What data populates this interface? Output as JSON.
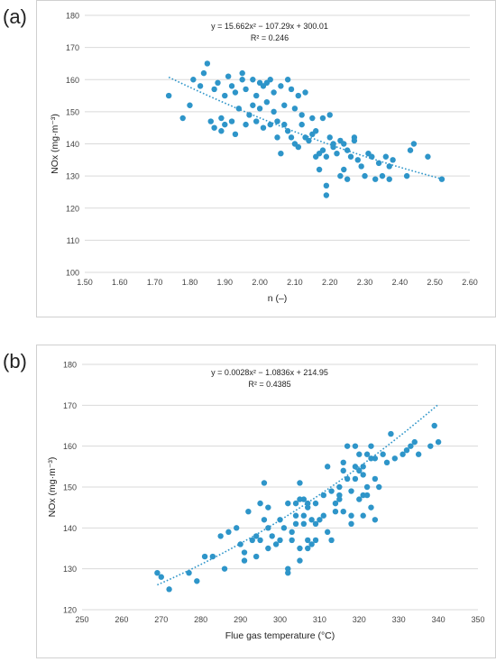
{
  "panels": [
    {
      "label": "(a)"
    },
    {
      "label": "(b)"
    }
  ],
  "chart_data": [
    {
      "type": "scatter",
      "title": "",
      "xlabel": "n (–)",
      "ylabel": "NOx (mg·m⁻³)",
      "xlim": [
        1.5,
        2.6
      ],
      "ylim": [
        100,
        180
      ],
      "x_ticks": [
        "1.50",
        "1.60",
        "1.70",
        "1.80",
        "1.90",
        "2.00",
        "2.10",
        "2.20",
        "2.30",
        "2.40",
        "2.50",
        "2.60"
      ],
      "y_ticks": [
        "100",
        "110",
        "120",
        "130",
        "140",
        "150",
        "160",
        "170",
        "180"
      ],
      "equation": "y = 15.662x² − 107.29x + 300.01",
      "r2": "R² = 0.246",
      "trendline": {
        "type": "polynomial",
        "a": 15.662,
        "b": -107.29,
        "c": 300.01,
        "x_range": [
          1.74,
          2.52
        ]
      },
      "color": "#2e95c9",
      "grid": "horizontal",
      "points": [
        [
          1.74,
          155
        ],
        [
          1.78,
          148
        ],
        [
          1.8,
          152
        ],
        [
          1.81,
          160
        ],
        [
          1.83,
          158
        ],
        [
          1.84,
          162
        ],
        [
          1.85,
          165
        ],
        [
          1.86,
          147
        ],
        [
          1.87,
          145
        ],
        [
          1.87,
          157
        ],
        [
          1.88,
          159
        ],
        [
          1.89,
          144
        ],
        [
          1.89,
          148
        ],
        [
          1.9,
          155
        ],
        [
          1.9,
          146
        ],
        [
          1.91,
          161
        ],
        [
          1.92,
          158
        ],
        [
          1.92,
          147
        ],
        [
          1.93,
          156
        ],
        [
          1.93,
          143
        ],
        [
          1.94,
          151
        ],
        [
          1.95,
          162
        ],
        [
          1.95,
          160
        ],
        [
          1.96,
          157
        ],
        [
          1.96,
          146
        ],
        [
          1.97,
          149
        ],
        [
          1.98,
          160
        ],
        [
          1.98,
          152
        ],
        [
          1.99,
          147
        ],
        [
          1.99,
          155
        ],
        [
          2.0,
          159
        ],
        [
          2.0,
          151
        ],
        [
          2.01,
          145
        ],
        [
          2.01,
          158
        ],
        [
          2.02,
          159
        ],
        [
          2.02,
          153
        ],
        [
          2.03,
          146
        ],
        [
          2.03,
          160
        ],
        [
          2.04,
          156
        ],
        [
          2.04,
          150
        ],
        [
          2.05,
          142
        ],
        [
          2.05,
          147
        ],
        [
          2.06,
          137
        ],
        [
          2.06,
          158
        ],
        [
          2.07,
          152
        ],
        [
          2.07,
          146
        ],
        [
          2.08,
          160
        ],
        [
          2.08,
          144
        ],
        [
          2.09,
          142
        ],
        [
          2.09,
          157
        ],
        [
          2.1,
          151
        ],
        [
          2.1,
          140
        ],
        [
          2.11,
          155
        ],
        [
          2.11,
          139
        ],
        [
          2.12,
          149
        ],
        [
          2.12,
          146
        ],
        [
          2.13,
          142
        ],
        [
          2.13,
          156
        ],
        [
          2.14,
          141
        ],
        [
          2.15,
          143
        ],
        [
          2.15,
          148
        ],
        [
          2.16,
          144
        ],
        [
          2.16,
          136
        ],
        [
          2.17,
          137
        ],
        [
          2.17,
          132
        ],
        [
          2.18,
          148
        ],
        [
          2.18,
          138
        ],
        [
          2.19,
          136
        ],
        [
          2.19,
          127
        ],
        [
          2.19,
          124
        ],
        [
          2.2,
          149
        ],
        [
          2.2,
          142
        ],
        [
          2.21,
          140
        ],
        [
          2.21,
          139
        ],
        [
          2.22,
          137
        ],
        [
          2.23,
          141
        ],
        [
          2.23,
          130
        ],
        [
          2.24,
          132
        ],
        [
          2.24,
          140
        ],
        [
          2.25,
          138
        ],
        [
          2.25,
          129
        ],
        [
          2.26,
          136
        ],
        [
          2.27,
          141
        ],
        [
          2.27,
          142
        ],
        [
          2.28,
          135
        ],
        [
          2.29,
          133
        ],
        [
          2.3,
          130
        ],
        [
          2.31,
          137
        ],
        [
          2.32,
          136
        ],
        [
          2.33,
          129
        ],
        [
          2.34,
          134
        ],
        [
          2.35,
          130
        ],
        [
          2.36,
          136
        ],
        [
          2.37,
          133
        ],
        [
          2.37,
          129
        ],
        [
          2.38,
          135
        ],
        [
          2.42,
          130
        ],
        [
          2.43,
          138
        ],
        [
          2.44,
          140
        ],
        [
          2.48,
          136
        ],
        [
          2.52,
          129
        ]
      ]
    },
    {
      "type": "scatter",
      "title": "",
      "xlabel": "Flue gas temperature (°C)",
      "ylabel": "NOx (mg·m⁻³)",
      "xlim": [
        250,
        350
      ],
      "ylim": [
        120,
        180
      ],
      "x_ticks": [
        "250",
        "260",
        "270",
        "280",
        "290",
        "300",
        "310",
        "320",
        "330",
        "340",
        "350"
      ],
      "y_ticks": [
        "120",
        "130",
        "140",
        "150",
        "160",
        "170",
        "180"
      ],
      "equation": "y = 0.0028x² − 1.0836x + 214.95",
      "r2": "R² = 0.4385",
      "trendline": {
        "type": "polynomial",
        "a": 0.0028,
        "b": -1.0836,
        "c": 214.95,
        "x_range": [
          269,
          340
        ]
      },
      "color": "#2e95c9",
      "grid": "horizontal",
      "points": [
        [
          269,
          129
        ],
        [
          270,
          128
        ],
        [
          272,
          125
        ],
        [
          277,
          129
        ],
        [
          279,
          127
        ],
        [
          281,
          133
        ],
        [
          283,
          133
        ],
        [
          285,
          138
        ],
        [
          286,
          130
        ],
        [
          287,
          139
        ],
        [
          289,
          140
        ],
        [
          290,
          136
        ],
        [
          291,
          134
        ],
        [
          291,
          132
        ],
        [
          292,
          144
        ],
        [
          293,
          137
        ],
        [
          294,
          138
        ],
        [
          294,
          133
        ],
        [
          295,
          146
        ],
        [
          295,
          137
        ],
        [
          296,
          151
        ],
        [
          296,
          142
        ],
        [
          297,
          145
        ],
        [
          297,
          140
        ],
        [
          297,
          135
        ],
        [
          298,
          138
        ],
        [
          299,
          136
        ],
        [
          300,
          137
        ],
        [
          300,
          142
        ],
        [
          301,
          140
        ],
        [
          302,
          146
        ],
        [
          302,
          130
        ],
        [
          302,
          129
        ],
        [
          303,
          139
        ],
        [
          303,
          137
        ],
        [
          304,
          143
        ],
        [
          304,
          146
        ],
        [
          304,
          141
        ],
        [
          305,
          151
        ],
        [
          305,
          147
        ],
        [
          305,
          135
        ],
        [
          305,
          132
        ],
        [
          306,
          147
        ],
        [
          306,
          143
        ],
        [
          306,
          141
        ],
        [
          307,
          146
        ],
        [
          307,
          145
        ],
        [
          307,
          137
        ],
        [
          307,
          135
        ],
        [
          308,
          142
        ],
        [
          308,
          136
        ],
        [
          309,
          141
        ],
        [
          309,
          146
        ],
        [
          309,
          137
        ],
        [
          310,
          142
        ],
        [
          311,
          143
        ],
        [
          311,
          148
        ],
        [
          312,
          155
        ],
        [
          312,
          139
        ],
        [
          313,
          137
        ],
        [
          313,
          149
        ],
        [
          314,
          144
        ],
        [
          314,
          146
        ],
        [
          315,
          147
        ],
        [
          315,
          148
        ],
        [
          315,
          150
        ],
        [
          316,
          144
        ],
        [
          316,
          156
        ],
        [
          316,
          154
        ],
        [
          317,
          152
        ],
        [
          317,
          160
        ],
        [
          318,
          149
        ],
        [
          318,
          143
        ],
        [
          318,
          141
        ],
        [
          319,
          155
        ],
        [
          319,
          152
        ],
        [
          319,
          160
        ],
        [
          320,
          147
        ],
        [
          320,
          158
        ],
        [
          320,
          154
        ],
        [
          321,
          148
        ],
        [
          321,
          155
        ],
        [
          321,
          153
        ],
        [
          321,
          143
        ],
        [
          322,
          150
        ],
        [
          322,
          148
        ],
        [
          322,
          158
        ],
        [
          323,
          157
        ],
        [
          323,
          145
        ],
        [
          323,
          160
        ],
        [
          324,
          152
        ],
        [
          324,
          142
        ],
        [
          324,
          157
        ],
        [
          325,
          150
        ],
        [
          326,
          158
        ],
        [
          327,
          156
        ],
        [
          328,
          163
        ],
        [
          329,
          157
        ],
        [
          331,
          158
        ],
        [
          332,
          159
        ],
        [
          333,
          160
        ],
        [
          334,
          161
        ],
        [
          335,
          158
        ],
        [
          338,
          160
        ],
        [
          339,
          165
        ],
        [
          340,
          161
        ]
      ]
    }
  ]
}
